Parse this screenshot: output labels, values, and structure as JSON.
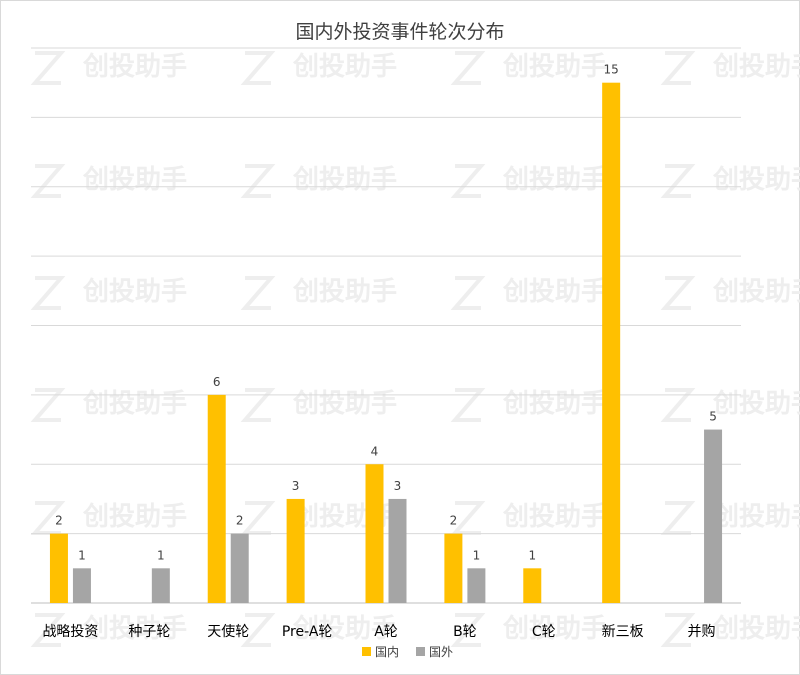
{
  "chart_data": {
    "type": "bar",
    "title": "国内外投资事件轮次分布",
    "categories": [
      "战略投资",
      "种子轮",
      "天使轮",
      "Pre-A轮",
      "A轮",
      "B轮",
      "C轮",
      "新三板",
      "并购"
    ],
    "series": [
      {
        "name": "国内",
        "color": "#FFC000",
        "values": [
          2,
          null,
          6,
          3,
          4,
          2,
          1,
          15,
          null
        ]
      },
      {
        "name": "国外",
        "color": "#A5A5A5",
        "values": [
          1,
          1,
          2,
          null,
          3,
          1,
          null,
          null,
          5
        ]
      }
    ],
    "ylim": [
      0,
      16
    ],
    "y_gridline_step": 2,
    "y_tick_labels_visible": false,
    "grid": true,
    "data_labels": true,
    "legend_position": "bottom",
    "watermark_text": "创投助手"
  }
}
